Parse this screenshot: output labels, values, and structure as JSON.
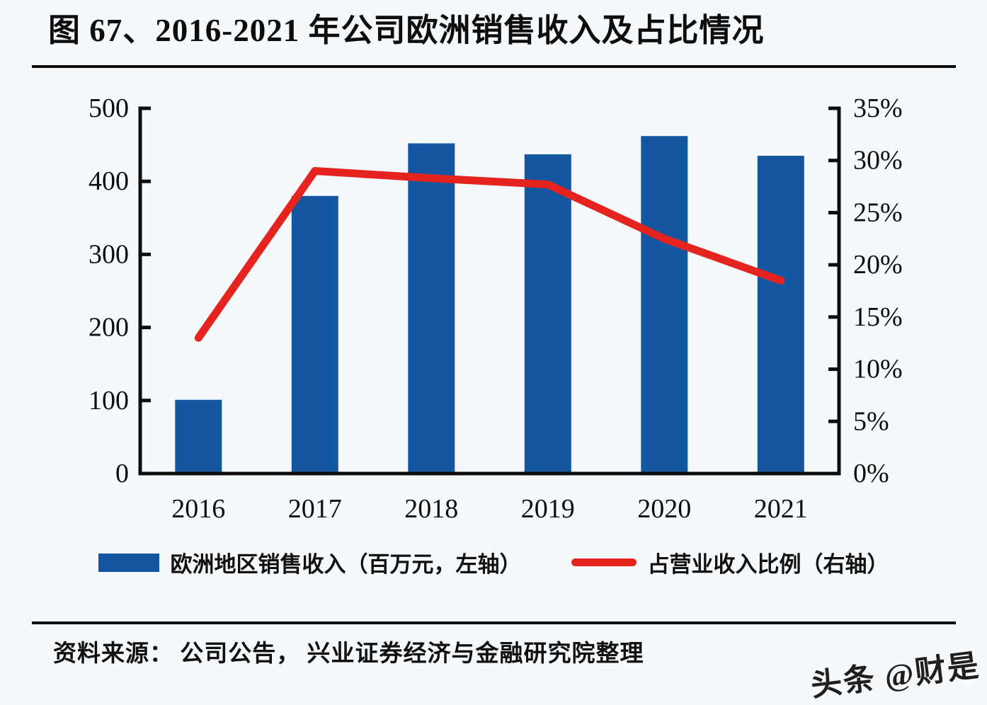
{
  "page": {
    "title": "图 67、2016-2021 年公司欧洲销售收入及占比情况",
    "source": "资料来源：  公司公告，  兴业证券经济与金融研究院整理",
    "watermark": "头条 @财是"
  },
  "legend": {
    "bar_label": "欧洲地区销售收入（百万元，左轴）",
    "line_label": "占营业收入比例（右轴）"
  },
  "colors": {
    "bar": "#1456A0",
    "line": "#E5231F",
    "axis": "#0d0d0d",
    "background": "#f6f9fb"
  },
  "chart_data": {
    "type": "bar",
    "subtype": "bar-line-combo",
    "title": "图 67、2016-2021 年公司欧洲销售收入及占比情况",
    "categories": [
      "2016",
      "2017",
      "2018",
      "2019",
      "2020",
      "2021"
    ],
    "series": [
      {
        "name": "欧洲地区销售收入（百万元，左轴）",
        "type": "bar",
        "axis": "left",
        "values": [
          101,
          380,
          452,
          437,
          462,
          435
        ]
      },
      {
        "name": "占营业收入比例（右轴）",
        "type": "line",
        "axis": "right",
        "values": [
          13.0,
          29.0,
          28.3,
          27.7,
          22.5,
          18.5
        ]
      }
    ],
    "left_axis": {
      "min": 0,
      "max": 500,
      "tick_step": 100,
      "tick_labels": [
        "0",
        "100",
        "200",
        "300",
        "400",
        "500"
      ]
    },
    "right_axis": {
      "min": 0,
      "max": 35,
      "tick_step": 5,
      "tick_labels": [
        "0%",
        "5%",
        "10%",
        "15%",
        "20%",
        "25%",
        "30%",
        "35%"
      ]
    },
    "xlabel": "",
    "ylabel": "",
    "grid": false,
    "legend_position": "bottom"
  }
}
